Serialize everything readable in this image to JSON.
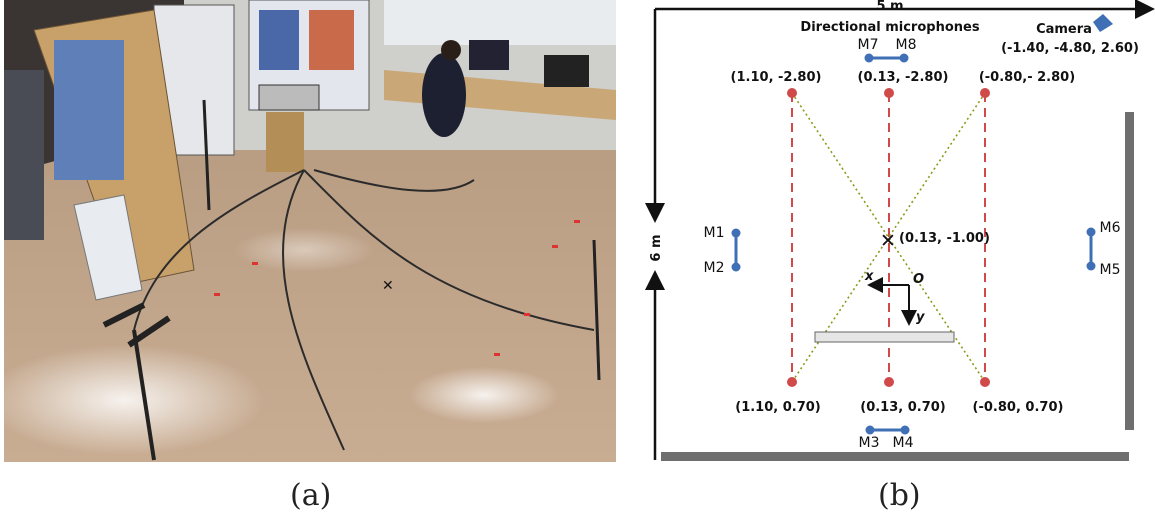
{
  "captions": {
    "a": "(a)",
    "b": "(b)"
  },
  "diagram": {
    "width_label": "5 m",
    "height_label": "6 m",
    "mic_group_label": "Directional microphones",
    "camera_label": "Camera",
    "camera_coord": "(-1.40, -4.80, 2.60)",
    "center_coord": "(0.13, -1.00)",
    "origin_label": "O",
    "axis_x": "x",
    "axis_y": "y",
    "points": {
      "p1": "(1.10, -2.80)",
      "p2": "(0.13, -2.80)",
      "p3": "(-0.80,- 2.80)",
      "p4": "(1.10, 0.70)",
      "p5": "(0.13, 0.70)",
      "p6": "(-0.80, 0.70)"
    },
    "mics": {
      "m1": "M1",
      "m2": "M2",
      "m3": "M3",
      "m4": "M4",
      "m5": "M5",
      "m6": "M6",
      "m7": "M7",
      "m8": "M8"
    },
    "colors": {
      "mic": "#3f6fb5",
      "point": "#d04a4a",
      "dashed": "#d04a4a",
      "diag": "#8a9a1a",
      "wall": "#6e6e6e"
    }
  }
}
